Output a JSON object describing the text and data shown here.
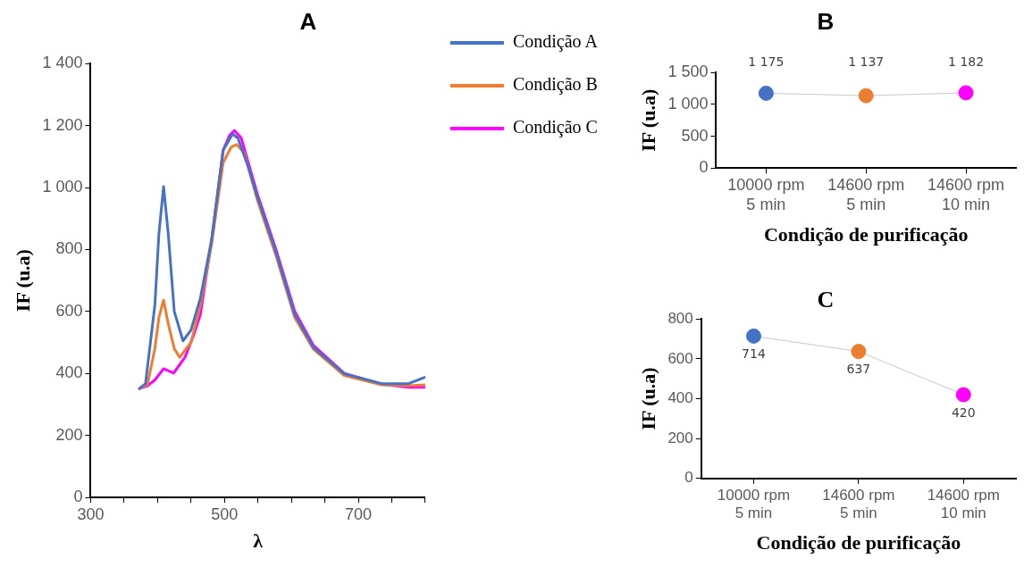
{
  "chart_data": [
    {
      "type": "line",
      "title": "A",
      "xlabel": "λ",
      "ylabel": "IF (u.a)",
      "xlim": [
        300,
        800
      ],
      "xticks": [
        300,
        {
          "value": 350,
          "label": null
        },
        {
          "value": 400,
          "label": null
        },
        {
          "value": 450,
          "label": null
        },
        500,
        {
          "value": 550,
          "label": null
        },
        {
          "value": 600,
          "label": null
        },
        {
          "value": 650,
          "label": null
        },
        700,
        {
          "value": 750,
          "label": null
        },
        {
          "value": 800,
          "label": null
        }
      ],
      "ylim": [
        0,
        1400
      ],
      "yticks": [
        0,
        200,
        400,
        600,
        800,
        {
          "value": 1000,
          "label": "1 000"
        },
        {
          "value": 1200,
          "label": "1 200"
        },
        {
          "value": 1400,
          "label": "1 400"
        }
      ],
      "grid": false,
      "legend": "right",
      "marker": "none",
      "series": [
        {
          "name": "Condição A",
          "color": "#4472c4",
          "x": [
            373,
            382,
            396,
            402,
            409,
            416,
            425,
            438,
            450,
            464,
            481,
            498,
            512,
            520,
            535,
            549,
            577,
            605,
            633,
            679,
            735,
            775,
            800
          ],
          "values": [
            351,
            367,
            621,
            850,
            1003,
            850,
            600,
            505,
            540,
            643,
            834,
            1120,
            1173,
            1160,
            1070,
            971,
            791,
            590,
            484,
            399,
            367,
            367,
            388
          ]
        },
        {
          "name": "Condição B",
          "color": "#ed7d31",
          "x": [
            373,
            385,
            396,
            402,
            409,
            416,
            425,
            433,
            450,
            464,
            481,
            498,
            510,
            518,
            530,
            549,
            577,
            605,
            633,
            679,
            735,
            775,
            800
          ],
          "values": [
            351,
            365,
            480,
            580,
            637,
            560,
            480,
            452,
            500,
            620,
            820,
            1080,
            1130,
            1139,
            1110,
            960,
            780,
            580,
            478,
            393,
            363,
            360,
            363
          ]
        },
        {
          "name": "Condição C",
          "color": "#ff00ff",
          "x": [
            373,
            385,
            396,
            409,
            424,
            441,
            455,
            464,
            481,
            498,
            508,
            515,
            525,
            549,
            577,
            605,
            633,
            679,
            735,
            775,
            800
          ],
          "values": [
            351,
            360,
            379,
            415,
            401,
            452,
            530,
            590,
            834,
            1120,
            1170,
            1184,
            1160,
            980,
            800,
            600,
            490,
            400,
            365,
            355,
            355
          ]
        }
      ]
    },
    {
      "type": "line",
      "title": "B",
      "xlabel": "Condição de purificação",
      "ylabel": "IF (u.a)",
      "categories": [
        "10000 rpm\n5 min",
        "14600 rpm\n5 min",
        "14600 rpm\n10 min"
      ],
      "ylim": [
        0,
        1500
      ],
      "yticks": [
        0,
        500,
        {
          "value": 1000,
          "label": "1 000"
        },
        {
          "value": 1500,
          "label": "1 500"
        }
      ],
      "grid": false,
      "legend": false,
      "marker": "circle",
      "series": [
        {
          "color": "#c8c8c8",
          "colors": [
            "#4472c4",
            "#ed7d31",
            "#ff00ff"
          ],
          "values": [
            1175,
            1137,
            1182
          ],
          "value_labels": [
            "1 175",
            "1 137",
            "1 182"
          ]
        }
      ]
    },
    {
      "type": "line",
      "title": "C",
      "xlabel": "Condição de purificação",
      "ylabel": "IF (u.a)",
      "categories": [
        "10000 rpm\n5 min",
        "14600 rpm\n5 min",
        "14600 rpm\n10 min"
      ],
      "ylim": [
        0,
        800
      ],
      "yticks": [
        0,
        200,
        400,
        600,
        800
      ],
      "grid": false,
      "legend": false,
      "marker": "circle",
      "data_labels": true,
      "series": [
        {
          "color": "#c8c8c8",
          "colors": [
            "#4472c4",
            "#ed7d31",
            "#ff00ff"
          ],
          "values": [
            714,
            637,
            420
          ]
        }
      ]
    }
  ]
}
